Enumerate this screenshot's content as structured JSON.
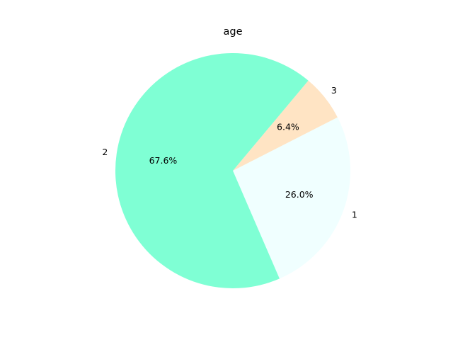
{
  "chart_data": {
    "type": "pie",
    "title": "age",
    "slices": [
      {
        "label": "1",
        "value": 26.0,
        "pct_label": "26.0%",
        "color": "#f0ffff"
      },
      {
        "label": "3",
        "value": 6.4,
        "pct_label": "6.4%",
        "color": "#ffe4c4"
      },
      {
        "label": "2",
        "value": 67.6,
        "pct_label": "67.6%",
        "color": "#7fffd4"
      }
    ],
    "legend": "none"
  }
}
